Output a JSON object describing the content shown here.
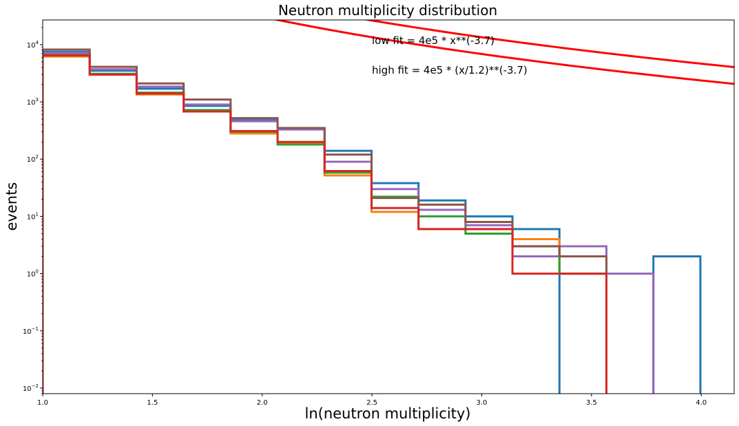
{
  "chart_data": {
    "type": "histogram",
    "title": "Neutron multiplicity distribution",
    "xlabel": "ln(neutron multiplicity)",
    "ylabel": "events",
    "xlim": [
      1.0,
      4.15
    ],
    "ylim": [
      0.008,
      27000
    ],
    "yscale": "log",
    "grid": false,
    "legend": "none",
    "x_ticks": [
      {
        "value": 1.0,
        "label": "1.0"
      },
      {
        "value": 1.5,
        "label": "1.5"
      },
      {
        "value": 2.0,
        "label": "2.0"
      },
      {
        "value": 2.5,
        "label": "2.5"
      },
      {
        "value": 3.0,
        "label": "3.0"
      },
      {
        "value": 3.5,
        "label": "3.5"
      },
      {
        "value": 4.0,
        "label": "4.0"
      }
    ],
    "y_ticks": [
      {
        "value": 0.01,
        "base": "10",
        "exp": "−2"
      },
      {
        "value": 0.1,
        "base": "10",
        "exp": "−1"
      },
      {
        "value": 1,
        "base": "10",
        "exp": "0"
      },
      {
        "value": 10,
        "base": "10",
        "exp": "1"
      },
      {
        "value": 100,
        "base": "10",
        "exp": "2"
      },
      {
        "value": 1000,
        "base": "10",
        "exp": "3"
      },
      {
        "value": 10000,
        "base": "10",
        "exp": "4"
      }
    ],
    "bin_edges": [
      1.0,
      1.214,
      1.428,
      1.642,
      1.856,
      2.07,
      2.284,
      2.498,
      2.712,
      2.926,
      3.14,
      3.354,
      3.568,
      3.782,
      3.996
    ],
    "series": [
      {
        "color": "#1f77b4",
        "values": [
          7500,
          3500,
          1700,
          850,
          480,
          340,
          140,
          38,
          19,
          10,
          6,
          0,
          0,
          2
        ]
      },
      {
        "color": "#ff7f0e",
        "values": [
          6200,
          3000,
          1350,
          700,
          280,
          190,
          52,
          12,
          6,
          6,
          4,
          1,
          0,
          0
        ]
      },
      {
        "color": "#2ca02c",
        "values": [
          6800,
          3100,
          1450,
          720,
          300,
          180,
          58,
          22,
          10,
          5,
          3,
          1,
          0,
          0
        ]
      },
      {
        "color": "#9467bd",
        "values": [
          7200,
          3700,
          1850,
          900,
          460,
          330,
          90,
          30,
          13,
          7,
          2,
          3,
          1,
          0
        ]
      },
      {
        "color": "#8c564b",
        "values": [
          8200,
          4100,
          2100,
          1100,
          520,
          350,
          120,
          21,
          16,
          8,
          3,
          2,
          0,
          0
        ]
      },
      {
        "color": "#d62728",
        "values": [
          6500,
          3000,
          1400,
          680,
          310,
          200,
          62,
          14,
          6,
          6,
          1,
          1,
          0,
          0
        ]
      }
    ],
    "fits": [
      {
        "color": "#ff0000",
        "label": "low fit = 4e5 * x**(-3.7)",
        "amplitude": 400000,
        "exponent": -3.7,
        "scale": 1.0,
        "x_start": 1.1,
        "x_end": 4.15
      },
      {
        "color": "#ff0000",
        "label": "high fit = 4e5 * (x/1.2)**(-3.7)",
        "amplitude": 400000,
        "exponent": -3.7,
        "scale": 1.2,
        "x_start": 1.1,
        "x_end": 4.15
      }
    ]
  }
}
